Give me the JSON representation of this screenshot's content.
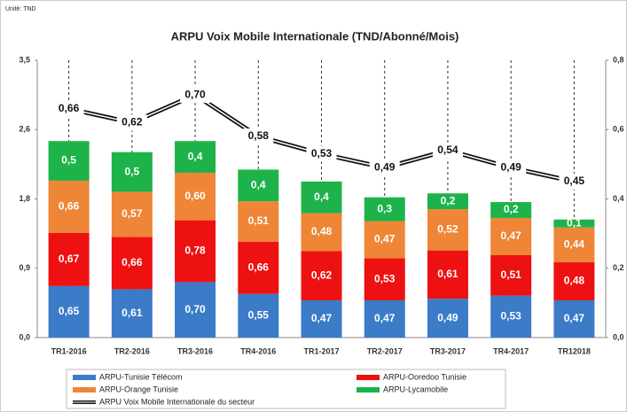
{
  "chart_data": {
    "type": "bar",
    "unit": "Unité: TND",
    "title": "ARPU Voix Mobile Internationale (TND/Abonné/Mois)",
    "categories": [
      "TR1-2016",
      "TR2-2016",
      "TR3-2016",
      "TR4-2016",
      "TR1-2017",
      "TR2-2017",
      "TR3-2017",
      "TR4-2017",
      "TR12018"
    ],
    "stacked": true,
    "series": [
      {
        "name": "ARPU-Tunisie Télécom",
        "color": "#3b7bc8",
        "values": [
          0.65,
          0.61,
          0.7,
          0.55,
          0.47,
          0.47,
          0.49,
          0.53,
          0.47
        ],
        "value_labels": [
          "0,65",
          "0,61",
          "0,70",
          "0,55",
          "0,47",
          "0,47",
          "0,49",
          "0,53",
          "0,47"
        ]
      },
      {
        "name": "ARPU-Ooredoo Tunisie",
        "color": "#ee1111",
        "values": [
          0.67,
          0.66,
          0.78,
          0.66,
          0.62,
          0.53,
          0.61,
          0.51,
          0.48
        ],
        "value_labels": [
          "0,67",
          "0,66",
          "0,78",
          "0,66",
          "0,62",
          "0,53",
          "0,61",
          "0,51",
          "0,48"
        ]
      },
      {
        "name": "ARPU-Orange Tunisie",
        "color": "#ee8537",
        "values": [
          0.66,
          0.57,
          0.6,
          0.51,
          0.48,
          0.47,
          0.52,
          0.47,
          0.44
        ],
        "value_labels": [
          "0,66",
          "0,57",
          "0,60",
          "0,51",
          "0,48",
          "0,47",
          "0,52",
          "0,47",
          "0,44"
        ]
      },
      {
        "name": "ARPU-Lycamobile",
        "color": "#1db34a",
        "values": [
          0.5,
          0.5,
          0.4,
          0.4,
          0.4,
          0.3,
          0.2,
          0.2,
          0.1
        ],
        "value_labels": [
          "0,5",
          "0,5",
          "0,4",
          "0,4",
          "0,4",
          "0,3",
          "0,2",
          "0,2",
          "0,1"
        ]
      },
      {
        "name": "ARPU  Voix Mobile Internationale  du secteur",
        "type": "line",
        "axis": "y2",
        "color": "#111111",
        "values": [
          0.66,
          0.62,
          0.7,
          0.58,
          0.53,
          0.49,
          0.54,
          0.49,
          0.45
        ],
        "value_labels": [
          "0,66",
          "0,62",
          "0,70",
          "0,58",
          "0,53",
          "0,49",
          "0,54",
          "0,49",
          "0,45"
        ]
      }
    ],
    "ylim": [
      0,
      3.5
    ],
    "yticks": [
      {
        "value": 0,
        "label": "0,0"
      },
      {
        "value": 0.875,
        "label": "0,9"
      },
      {
        "value": 1.75,
        "label": "1,8"
      },
      {
        "value": 2.625,
        "label": "2,6"
      },
      {
        "value": 3.5,
        "label": "3,5"
      }
    ],
    "y2lim": [
      0,
      0.8
    ],
    "y2ticks": [
      {
        "value": 0,
        "label": "0,0"
      },
      {
        "value": 0.2,
        "label": "0,2"
      },
      {
        "value": 0.4,
        "label": "0,4"
      },
      {
        "value": 0.6,
        "label": "0,6"
      },
      {
        "value": 0.8,
        "label": "0,8"
      }
    ]
  }
}
